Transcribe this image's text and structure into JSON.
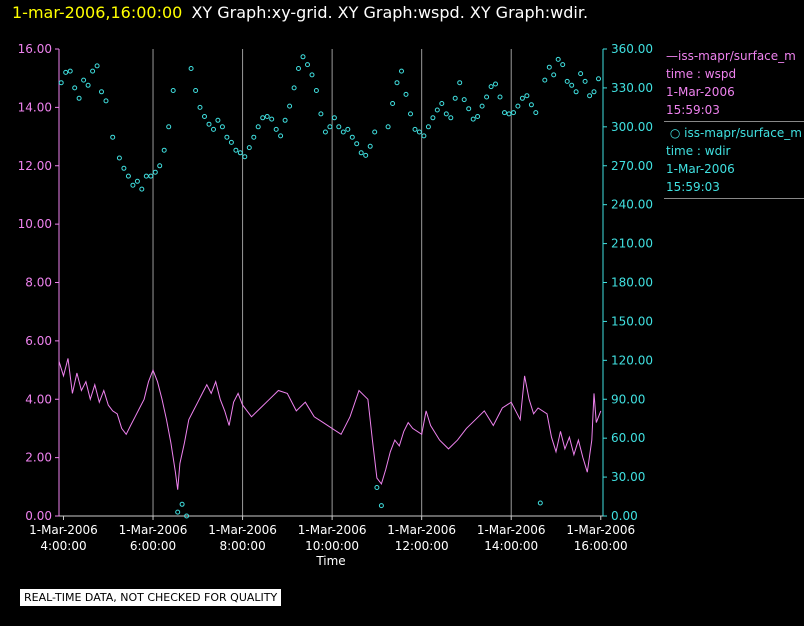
{
  "header": {
    "stamp": "1-mar-2006,16:00:00",
    "title": "XY Graph:xy-grid.  XY Graph:wspd.  XY Graph:wdir."
  },
  "legend": [
    {
      "label": "iss-mapr/surface_m",
      "var": "time : wspd",
      "date": "1-Mar-2006",
      "time": "15:59:03"
    },
    {
      "label": "iss-mapr/surface_m",
      "var": "time : wdir",
      "date": "1-Mar-2006",
      "time": "15:59:03"
    }
  ],
  "footer": "REAL-TIME DATA, NOT CHECKED FOR QUALITY",
  "colors": {
    "wspd": "#ee82ee",
    "wdir": "#40e0e0",
    "grid": "#9a9a9a"
  },
  "chart_data": {
    "type": "scatter",
    "xlabel": "Time",
    "xlim": [
      3.9,
      16.05
    ],
    "x_ticks": [
      {
        "value": 4,
        "date": "1-Mar-2006",
        "time": "4:00:00"
      },
      {
        "value": 6,
        "date": "1-Mar-2006",
        "time": "6:00:00"
      },
      {
        "value": 8,
        "date": "1-Mar-2006",
        "time": "8:00:00"
      },
      {
        "value": 10,
        "date": "1-Mar-2006",
        "time": "10:00:00"
      },
      {
        "value": 12,
        "date": "1-Mar-2006",
        "time": "12:00:00"
      },
      {
        "value": 14,
        "date": "1-Mar-2006",
        "time": "14:00:00"
      },
      {
        "value": 16,
        "date": "1-Mar-2006",
        "time": "16:00:00"
      }
    ],
    "y_left": {
      "lim": [
        0,
        16
      ],
      "ticks": [
        "0.00",
        "2.00",
        "4.00",
        "6.00",
        "8.00",
        "10.00",
        "12.00",
        "14.00",
        "16.00"
      ],
      "values": [
        0,
        2,
        4,
        6,
        8,
        10,
        12,
        14,
        16
      ]
    },
    "y_right": {
      "lim": [
        0,
        360
      ],
      "ticks": [
        "0.00",
        "30.00",
        "60.00",
        "90.00",
        "120.00",
        "150.00",
        "180.00",
        "210.00",
        "240.00",
        "270.00",
        "300.00",
        "330.00",
        "360.00"
      ],
      "values": [
        0,
        30,
        60,
        90,
        120,
        150,
        180,
        210,
        240,
        270,
        300,
        330,
        360
      ]
    },
    "grid": "vertical",
    "series": [
      {
        "key": "wspd",
        "style": "line",
        "axis": "left",
        "points": [
          [
            3.9,
            5.3
          ],
          [
            4.0,
            4.8
          ],
          [
            4.1,
            5.4
          ],
          [
            4.2,
            4.2
          ],
          [
            4.3,
            4.9
          ],
          [
            4.4,
            4.3
          ],
          [
            4.5,
            4.6
          ],
          [
            4.6,
            4.0
          ],
          [
            4.7,
            4.5
          ],
          [
            4.8,
            3.9
          ],
          [
            4.9,
            4.3
          ],
          [
            5.0,
            3.8
          ],
          [
            5.1,
            3.6
          ],
          [
            5.2,
            3.5
          ],
          [
            5.3,
            3.0
          ],
          [
            5.4,
            2.8
          ],
          [
            5.5,
            3.1
          ],
          [
            5.6,
            3.4
          ],
          [
            5.7,
            3.7
          ],
          [
            5.8,
            4.0
          ],
          [
            5.9,
            4.6
          ],
          [
            6.0,
            5.0
          ],
          [
            6.1,
            4.6
          ],
          [
            6.2,
            4.0
          ],
          [
            6.3,
            3.3
          ],
          [
            6.4,
            2.5
          ],
          [
            6.5,
            1.5
          ],
          [
            6.55,
            0.9
          ],
          [
            6.6,
            1.8
          ],
          [
            6.7,
            2.5
          ],
          [
            6.8,
            3.3
          ],
          [
            6.9,
            3.6
          ],
          [
            7.0,
            3.9
          ],
          [
            7.1,
            4.2
          ],
          [
            7.2,
            4.5
          ],
          [
            7.3,
            4.2
          ],
          [
            7.4,
            4.6
          ],
          [
            7.5,
            4.0
          ],
          [
            7.6,
            3.6
          ],
          [
            7.7,
            3.1
          ],
          [
            7.8,
            3.9
          ],
          [
            7.9,
            4.2
          ],
          [
            8.0,
            3.8
          ],
          [
            8.2,
            3.4
          ],
          [
            8.4,
            3.7
          ],
          [
            8.6,
            4.0
          ],
          [
            8.8,
            4.3
          ],
          [
            9.0,
            4.2
          ],
          [
            9.2,
            3.6
          ],
          [
            9.4,
            3.9
          ],
          [
            9.6,
            3.4
          ],
          [
            9.8,
            3.2
          ],
          [
            10.0,
            3.0
          ],
          [
            10.2,
            2.8
          ],
          [
            10.4,
            3.4
          ],
          [
            10.6,
            4.3
          ],
          [
            10.8,
            4.0
          ],
          [
            10.9,
            2.6
          ],
          [
            11.0,
            1.3
          ],
          [
            11.1,
            1.1
          ],
          [
            11.2,
            1.6
          ],
          [
            11.3,
            2.2
          ],
          [
            11.4,
            2.6
          ],
          [
            11.5,
            2.4
          ],
          [
            11.6,
            2.9
          ],
          [
            11.7,
            3.2
          ],
          [
            11.8,
            3.0
          ],
          [
            12.0,
            2.8
          ],
          [
            12.1,
            3.6
          ],
          [
            12.2,
            3.1
          ],
          [
            12.4,
            2.6
          ],
          [
            12.6,
            2.3
          ],
          [
            12.8,
            2.6
          ],
          [
            13.0,
            3.0
          ],
          [
            13.2,
            3.3
          ],
          [
            13.4,
            3.6
          ],
          [
            13.6,
            3.1
          ],
          [
            13.8,
            3.7
          ],
          [
            14.0,
            3.9
          ],
          [
            14.2,
            3.3
          ],
          [
            14.3,
            4.8
          ],
          [
            14.4,
            4.0
          ],
          [
            14.5,
            3.5
          ],
          [
            14.6,
            3.7
          ],
          [
            14.8,
            3.5
          ],
          [
            14.9,
            2.7
          ],
          [
            15.0,
            2.2
          ],
          [
            15.1,
            2.9
          ],
          [
            15.2,
            2.3
          ],
          [
            15.3,
            2.7
          ],
          [
            15.4,
            2.1
          ],
          [
            15.5,
            2.6
          ],
          [
            15.6,
            2.0
          ],
          [
            15.7,
            1.5
          ],
          [
            15.8,
            2.6
          ],
          [
            15.85,
            4.2
          ],
          [
            15.9,
            3.2
          ],
          [
            16.0,
            3.6
          ]
        ]
      },
      {
        "key": "wdir",
        "style": "markers",
        "axis": "right",
        "points": [
          [
            3.95,
            334
          ],
          [
            4.05,
            342
          ],
          [
            4.15,
            343
          ],
          [
            4.25,
            330
          ],
          [
            4.35,
            322
          ],
          [
            4.45,
            336
          ],
          [
            4.55,
            332
          ],
          [
            4.65,
            343
          ],
          [
            4.75,
            347
          ],
          [
            4.85,
            327
          ],
          [
            4.95,
            320
          ],
          [
            5.1,
            292
          ],
          [
            5.25,
            276
          ],
          [
            5.35,
            268
          ],
          [
            5.45,
            262
          ],
          [
            5.55,
            255
          ],
          [
            5.65,
            258
          ],
          [
            5.75,
            252
          ],
          [
            5.85,
            262
          ],
          [
            5.95,
            262
          ],
          [
            6.05,
            265
          ],
          [
            6.15,
            270
          ],
          [
            6.25,
            282
          ],
          [
            6.35,
            300
          ],
          [
            6.45,
            328
          ],
          [
            6.55,
            3
          ],
          [
            6.65,
            9
          ],
          [
            6.75,
            0
          ],
          [
            6.85,
            345
          ],
          [
            6.95,
            328
          ],
          [
            7.05,
            315
          ],
          [
            7.15,
            308
          ],
          [
            7.25,
            302
          ],
          [
            7.35,
            298
          ],
          [
            7.45,
            305
          ],
          [
            7.55,
            300
          ],
          [
            7.65,
            292
          ],
          [
            7.75,
            288
          ],
          [
            7.85,
            282
          ],
          [
            7.95,
            280
          ],
          [
            8.05,
            277
          ],
          [
            8.15,
            284
          ],
          [
            8.25,
            292
          ],
          [
            8.35,
            300
          ],
          [
            8.45,
            307
          ],
          [
            8.55,
            308
          ],
          [
            8.65,
            306
          ],
          [
            8.75,
            298
          ],
          [
            8.85,
            293
          ],
          [
            8.95,
            305
          ],
          [
            9.05,
            316
          ],
          [
            9.15,
            330
          ],
          [
            9.25,
            345
          ],
          [
            9.35,
            354
          ],
          [
            9.45,
            348
          ],
          [
            9.55,
            340
          ],
          [
            9.65,
            328
          ],
          [
            9.75,
            310
          ],
          [
            9.85,
            296
          ],
          [
            9.95,
            300
          ],
          [
            10.05,
            307
          ],
          [
            10.15,
            300
          ],
          [
            10.25,
            296
          ],
          [
            10.35,
            298
          ],
          [
            10.45,
            292
          ],
          [
            10.55,
            287
          ],
          [
            10.65,
            280
          ],
          [
            10.75,
            278
          ],
          [
            10.85,
            285
          ],
          [
            10.95,
            296
          ],
          [
            11.0,
            22
          ],
          [
            11.1,
            8
          ],
          [
            11.25,
            300
          ],
          [
            11.35,
            318
          ],
          [
            11.45,
            334
          ],
          [
            11.55,
            343
          ],
          [
            11.65,
            325
          ],
          [
            11.75,
            310
          ],
          [
            11.85,
            298
          ],
          [
            11.95,
            296
          ],
          [
            12.05,
            293
          ],
          [
            12.15,
            300
          ],
          [
            12.25,
            307
          ],
          [
            12.35,
            313
          ],
          [
            12.45,
            318
          ],
          [
            12.55,
            310
          ],
          [
            12.65,
            307
          ],
          [
            12.75,
            322
          ],
          [
            12.85,
            334
          ],
          [
            12.95,
            321
          ],
          [
            13.05,
            314
          ],
          [
            13.15,
            306
          ],
          [
            13.25,
            308
          ],
          [
            13.35,
            316
          ],
          [
            13.45,
            323
          ],
          [
            13.55,
            331
          ],
          [
            13.65,
            333
          ],
          [
            13.75,
            323
          ],
          [
            13.85,
            311
          ],
          [
            13.95,
            310
          ],
          [
            14.05,
            311
          ],
          [
            14.15,
            316
          ],
          [
            14.25,
            322
          ],
          [
            14.35,
            324
          ],
          [
            14.45,
            317
          ],
          [
            14.55,
            311
          ],
          [
            14.65,
            10
          ],
          [
            14.75,
            336
          ],
          [
            14.85,
            346
          ],
          [
            14.95,
            340
          ],
          [
            15.05,
            352
          ],
          [
            15.15,
            348
          ],
          [
            15.25,
            335
          ],
          [
            15.35,
            332
          ],
          [
            15.45,
            327
          ],
          [
            15.55,
            341
          ],
          [
            15.65,
            335
          ],
          [
            15.75,
            324
          ],
          [
            15.85,
            327
          ],
          [
            15.95,
            337
          ]
        ]
      }
    ]
  }
}
